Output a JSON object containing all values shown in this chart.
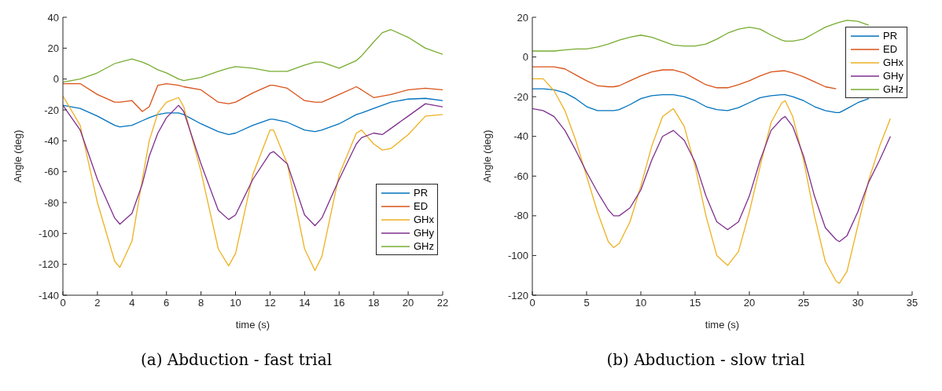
{
  "chart_data": [
    {
      "type": "line",
      "title": "(a) Abduction - fast trial",
      "xlabel": "time (s)",
      "ylabel": "Angle (deg)",
      "xlim": [
        0,
        22
      ],
      "xticks": [
        0,
        2,
        4,
        6,
        8,
        10,
        12,
        14,
        16,
        18,
        20,
        22
      ],
      "ylim": [
        -140,
        40
      ],
      "yticks": [
        -140,
        -120,
        -100,
        -80,
        -60,
        -40,
        -20,
        0,
        20,
        40
      ],
      "grid": false,
      "legend": "bottom right",
      "marker": "none",
      "line_style": "solid",
      "x": [
        0,
        1,
        2,
        3,
        3.3,
        4,
        4.6,
        5,
        5.5,
        6,
        6.7,
        7,
        8,
        9,
        9.6,
        10,
        11,
        12,
        12.2,
        13,
        14,
        14.6,
        15,
        16,
        17,
        17.3,
        18,
        18.5,
        19,
        20,
        21,
        22
      ],
      "series": [
        {
          "name": "PR",
          "color": "#0072bd",
          "values": [
            -17,
            -19,
            -24,
            -30,
            -31,
            -30,
            -27,
            -25,
            -23,
            -22,
            -22,
            -23,
            -29,
            -34,
            -36,
            -35,
            -30,
            -26,
            -26,
            -28,
            -33,
            -34,
            -33,
            -29,
            -23,
            -22,
            -19,
            -17,
            -15,
            -13,
            -12.5,
            -14
          ]
        },
        {
          "name": "ED",
          "color": "#d95319",
          "values": [
            -3,
            -3,
            -10,
            -15,
            -15,
            -14,
            -21,
            -18,
            -4,
            -3,
            -4,
            -5,
            -7,
            -15,
            -16,
            -15,
            -9,
            -4,
            -4,
            -6,
            -14,
            -15,
            -15,
            -10,
            -5,
            -7,
            -12,
            -11,
            -10,
            -7,
            -6,
            -7
          ]
        },
        {
          "name": "GHx",
          "color": "#edb120",
          "values": [
            -11,
            -30,
            -80,
            -118,
            -122,
            -105,
            -65,
            -40,
            -22,
            -15,
            -12,
            -18,
            -60,
            -110,
            -121,
            -113,
            -62,
            -33,
            -33,
            -55,
            -110,
            -124,
            -115,
            -62,
            -35,
            -33,
            -42,
            -46,
            -45,
            -36,
            -24,
            -23
          ]
        },
        {
          "name": "GHy",
          "color": "#7e2f8e",
          "values": [
            -17,
            -33,
            -65,
            -90,
            -94,
            -87,
            -68,
            -50,
            -35,
            -25,
            -17,
            -21,
            -55,
            -85,
            -91,
            -88,
            -65,
            -48,
            -47,
            -55,
            -88,
            -95,
            -90,
            -65,
            -42,
            -38,
            -35,
            -36,
            -32,
            -24,
            -16,
            -18
          ]
        },
        {
          "name": "GHz",
          "color": "#77ac30",
          "values": [
            -2,
            0,
            4,
            10,
            11,
            13,
            11,
            9,
            6,
            4,
            0,
            -1,
            1,
            5,
            7,
            8,
            7,
            5,
            5,
            5,
            9,
            11,
            11,
            7,
            12,
            15,
            24,
            30,
            32,
            27,
            20,
            16
          ]
        }
      ]
    },
    {
      "type": "line",
      "title": "(b) Abduction - slow trial",
      "xlabel": "time (s)",
      "ylabel": "Angle (deg)",
      "xlim": [
        0,
        35
      ],
      "xticks": [
        0,
        5,
        10,
        15,
        20,
        25,
        30,
        35
      ],
      "ylim": [
        -120,
        20
      ],
      "yticks": [
        -120,
        -100,
        -80,
        -60,
        -40,
        -20,
        0,
        20
      ],
      "grid": false,
      "legend": "top right",
      "marker": "none",
      "line_style": "solid",
      "x": [
        0,
        1,
        2,
        3,
        4,
        5,
        6,
        7,
        7.5,
        8,
        9,
        10,
        11,
        12,
        13,
        14,
        15,
        16,
        17,
        18,
        19,
        20,
        21,
        22,
        23,
        23.3,
        24,
        25,
        26,
        27,
        28,
        28.3,
        29,
        30,
        31,
        32,
        33
      ],
      "series": [
        {
          "name": "PR",
          "color": "#0072bd",
          "values": [
            -16,
            -16,
            -16.5,
            -18,
            -21,
            -25,
            -27,
            -27,
            -27,
            -26.5,
            -24,
            -21,
            -19.5,
            -19,
            -19,
            -20,
            -22,
            -25,
            -26.5,
            -27,
            -25.5,
            -23,
            -20.5,
            -19.5,
            -19,
            -19,
            -20,
            -22,
            -25,
            -27,
            -28,
            -28,
            -26,
            -23,
            -21,
            null,
            null
          ]
        },
        {
          "name": "ED",
          "color": "#d95319",
          "values": [
            -5,
            -5,
            -5,
            -6,
            -9,
            -12,
            -14.5,
            -15,
            -15,
            -14.5,
            -12,
            -9.5,
            -7.5,
            -6.5,
            -6.5,
            -8,
            -11,
            -14,
            -15.5,
            -15.5,
            -14,
            -12,
            -9.5,
            -7.5,
            -7,
            -7,
            -8,
            -10,
            -12.5,
            -15,
            -16,
            null,
            null,
            null,
            null,
            null,
            null
          ]
        },
        {
          "name": "GHx",
          "color": "#edb120",
          "values": [
            -11,
            -11,
            -17,
            -27,
            -42,
            -60,
            -78,
            -93,
            -96,
            -94,
            -83,
            -65,
            -45,
            -30,
            -26,
            -35,
            -55,
            -80,
            -100,
            -105,
            -98,
            -78,
            -55,
            -33,
            -23,
            -22,
            -30,
            -52,
            -80,
            -103,
            -113,
            -114,
            -108,
            -85,
            -62,
            -45,
            -31
          ]
        },
        {
          "name": "GHy",
          "color": "#7e2f8e",
          "values": [
            -26,
            -27,
            -30,
            -37,
            -47,
            -58,
            -68,
            -77,
            -80,
            -80,
            -76,
            -67,
            -52,
            -40,
            -37,
            -42,
            -53,
            -70,
            -83,
            -87,
            -83,
            -70,
            -52,
            -37,
            -31,
            -30,
            -35,
            -50,
            -70,
            -86,
            -92,
            -93,
            -90,
            -78,
            -63,
            -52,
            -40
          ]
        },
        {
          "name": "GHz",
          "color": "#77ac30",
          "values": [
            3,
            3,
            3,
            3.5,
            4,
            4,
            5,
            6.5,
            7.5,
            8.5,
            10,
            11,
            10,
            8,
            6,
            5.5,
            5.5,
            6.5,
            9,
            12,
            14,
            15,
            14,
            11,
            8.5,
            8,
            8,
            9,
            12,
            15,
            17,
            17.5,
            18.5,
            18,
            16,
            null,
            null
          ]
        }
      ]
    }
  ]
}
